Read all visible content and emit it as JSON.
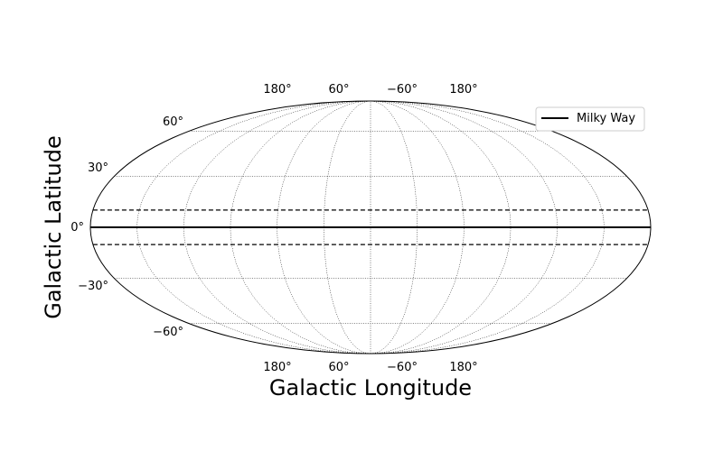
{
  "chart_data": {
    "type": "line",
    "projection": "mollweide-like ellipse (hammer/mollweide sky map)",
    "title": "",
    "xlabel": "Galactic Longitude",
    "ylabel": "Galactic Latitude",
    "x_tick_labels": [
      "180°",
      "60°",
      "−60°",
      "180°"
    ],
    "y_tick_labels": [
      "60°",
      "30°",
      "0°",
      "−30°",
      "−60°"
    ],
    "meridians_deg": [
      -180,
      -150,
      -120,
      -90,
      -60,
      -30,
      0,
      30,
      60,
      90,
      120,
      150,
      180
    ],
    "parallels_deg": [
      -60,
      -30,
      0,
      30,
      60
    ],
    "grid": true,
    "legend": {
      "placement": "top-right",
      "entries": [
        "Milky Way"
      ]
    },
    "series": [
      {
        "name": "Milky Way",
        "style": "solid",
        "color": "#000000",
        "x": [
          -180,
          180
        ],
        "y": [
          0,
          0
        ]
      },
      {
        "style": "dashed",
        "color": "#000000",
        "x": [
          -180,
          180
        ],
        "y": [
          10,
          10
        ]
      },
      {
        "style": "dashed",
        "color": "#000000",
        "x": [
          -180,
          180
        ],
        "y": [
          -10,
          -10
        ]
      }
    ]
  }
}
